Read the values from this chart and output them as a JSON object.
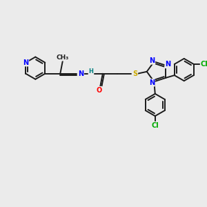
{
  "bg_color": "#ebebeb",
  "bond_color": "#1a1a1a",
  "bond_width": 1.4,
  "atom_colors": {
    "N": "#0000ff",
    "O": "#ff0000",
    "S": "#ccaa00",
    "Cl": "#00aa00",
    "H": "#008080",
    "C": "#1a1a1a"
  },
  "font_size": 7.0,
  "fig_width": 3.0,
  "fig_height": 3.0,
  "dpi": 100
}
